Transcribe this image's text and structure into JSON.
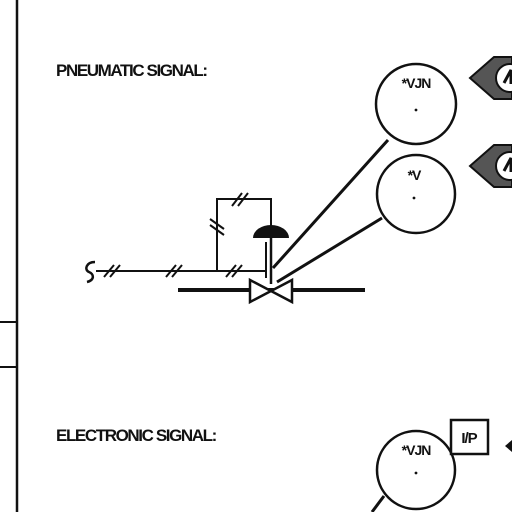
{
  "headings": {
    "pneumatic": "PNEUMATIC SIGNAL:",
    "electronic": "ELECTRONIC SIGNAL:"
  },
  "instruments": {
    "top_bubble": "*VJN",
    "middle_bubble": "*V",
    "bottom_bubble": "*VJN",
    "converter": "I/P"
  },
  "colors": {
    "ink": "#111111",
    "arrow_fill": "#555555"
  }
}
